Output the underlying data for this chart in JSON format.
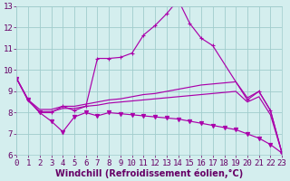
{
  "xlabel": "Windchill (Refroidissement éolien,°C)",
  "xlim": [
    0,
    23
  ],
  "ylim": [
    6,
    13
  ],
  "xticks": [
    0,
    1,
    2,
    3,
    4,
    5,
    6,
    7,
    8,
    9,
    10,
    11,
    12,
    13,
    14,
    15,
    16,
    17,
    18,
    19,
    20,
    21,
    22,
    23
  ],
  "yticks": [
    6,
    7,
    8,
    9,
    10,
    11,
    12,
    13
  ],
  "bg_color": "#d4eeee",
  "grid_color": "#a0cccc",
  "line_color": "#aa00aa",
  "font_color": "#660066",
  "tick_fontsize": 6.5,
  "label_fontsize": 7,
  "series": [
    {
      "x": [
        0,
        1,
        2,
        3,
        4,
        5,
        6,
        7,
        8,
        9,
        10,
        11,
        12,
        13,
        14,
        15,
        16,
        17,
        20,
        21,
        22,
        23
      ],
      "y": [
        9.6,
        8.6,
        8.0,
        8.0,
        8.3,
        8.1,
        8.3,
        10.55,
        10.55,
        10.6,
        10.8,
        11.65,
        12.1,
        12.65,
        13.3,
        12.2,
        11.5,
        11.15,
        8.6,
        9.0,
        8.1,
        6.1
      ],
      "marker": "+"
    },
    {
      "x": [
        0,
        1,
        2,
        3,
        4,
        5,
        6,
        7,
        8,
        9,
        10,
        11,
        12,
        13,
        14,
        15,
        16,
        17,
        18,
        19,
        20,
        21,
        22,
        23
      ],
      "y": [
        9.6,
        8.6,
        8.15,
        8.15,
        8.3,
        8.3,
        8.4,
        8.5,
        8.6,
        8.65,
        8.75,
        8.85,
        8.9,
        9.0,
        9.1,
        9.2,
        9.3,
        9.35,
        9.4,
        9.45,
        8.7,
        9.0,
        8.1,
        6.1
      ],
      "marker": null
    },
    {
      "x": [
        0,
        1,
        2,
        3,
        4,
        5,
        6,
        7,
        8,
        9,
        10,
        11,
        12,
        13,
        14,
        15,
        16,
        17,
        18,
        19,
        20,
        21,
        22,
        23
      ],
      "y": [
        9.6,
        8.55,
        8.05,
        8.05,
        8.2,
        8.2,
        8.3,
        8.35,
        8.45,
        8.5,
        8.55,
        8.6,
        8.65,
        8.7,
        8.75,
        8.8,
        8.85,
        8.9,
        8.95,
        9.0,
        8.5,
        8.75,
        7.9,
        6.1
      ],
      "marker": null
    },
    {
      "x": [
        0,
        1,
        2,
        3,
        4,
        5,
        6,
        7,
        8,
        9,
        10,
        11,
        12,
        13,
        14,
        15,
        16,
        17,
        18,
        19,
        20,
        21,
        22,
        23
      ],
      "y": [
        9.6,
        8.6,
        8.0,
        7.6,
        7.1,
        7.8,
        8.0,
        7.85,
        8.0,
        7.95,
        7.9,
        7.85,
        7.8,
        7.75,
        7.7,
        7.6,
        7.5,
        7.4,
        7.3,
        7.2,
        7.0,
        6.8,
        6.5,
        6.1
      ],
      "marker": "v"
    }
  ]
}
